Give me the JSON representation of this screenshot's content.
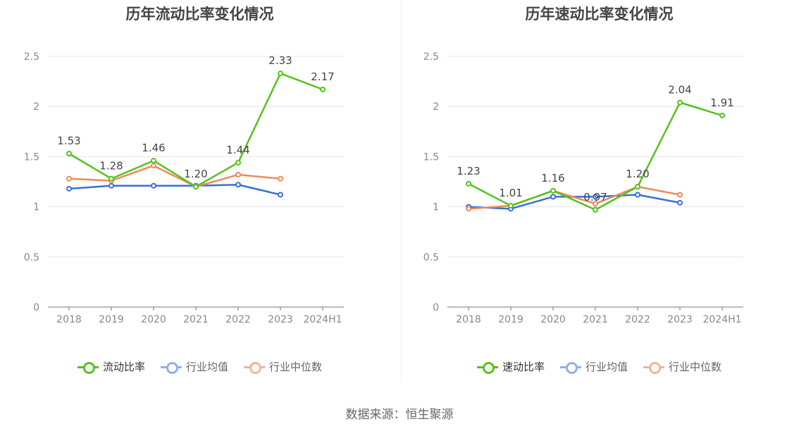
{
  "chart_data": [
    {
      "type": "line",
      "title": "历年流动比率变化情况",
      "categories": [
        "2018",
        "2019",
        "2020",
        "2021",
        "2022",
        "2023",
        "2024H1"
      ],
      "ylim": [
        0,
        2.5
      ],
      "yticks": [
        "0",
        "0.5",
        "1",
        "1.5",
        "2",
        "2.5"
      ],
      "grid": true,
      "legend": "bottom",
      "series": [
        {
          "name": "流动比率",
          "color": "#52c41a",
          "values": [
            1.53,
            1.28,
            1.46,
            1.2,
            1.44,
            2.33,
            2.17
          ],
          "labels": [
            "1.53",
            "1.28",
            "1.46",
            "1.20",
            "1.44",
            "2.33",
            "2.17"
          ]
        },
        {
          "name": "行业均值",
          "color": "#3a6fd8",
          "values": [
            1.18,
            1.21,
            1.21,
            1.21,
            1.22,
            1.12,
            null
          ]
        },
        {
          "name": "行业中位数",
          "color": "#ef8a5a",
          "values": [
            1.28,
            1.26,
            1.41,
            1.2,
            1.32,
            1.28,
            null
          ]
        }
      ]
    },
    {
      "type": "line",
      "title": "历年速动比率变化情况",
      "categories": [
        "2018",
        "2019",
        "2020",
        "2021",
        "2022",
        "2023",
        "2024H1"
      ],
      "ylim": [
        0,
        2.5
      ],
      "yticks": [
        "0",
        "0.5",
        "1",
        "1.5",
        "2",
        "2.5"
      ],
      "grid": true,
      "legend": "bottom",
      "series": [
        {
          "name": "速动比率",
          "color": "#52c41a",
          "values": [
            1.23,
            1.01,
            1.16,
            0.97,
            1.2,
            2.04,
            1.91
          ],
          "labels": [
            "1.23",
            "1.01",
            "1.16",
            "0.97",
            "1.20",
            "2.04",
            "1.91"
          ]
        },
        {
          "name": "行业均值",
          "color": "#3a6fd8",
          "values": [
            1.0,
            0.98,
            1.1,
            1.1,
            1.12,
            1.04,
            null
          ]
        },
        {
          "name": "行业中位数",
          "color": "#ef8a5a",
          "values": [
            0.98,
            1.01,
            1.16,
            1.03,
            1.2,
            1.12,
            null
          ]
        }
      ]
    }
  ],
  "legend_colors": {
    "primary": "#52c41a",
    "mean": "#8fb0ea",
    "median": "#f5b39a"
  },
  "source": "数据来源：恒生聚源"
}
